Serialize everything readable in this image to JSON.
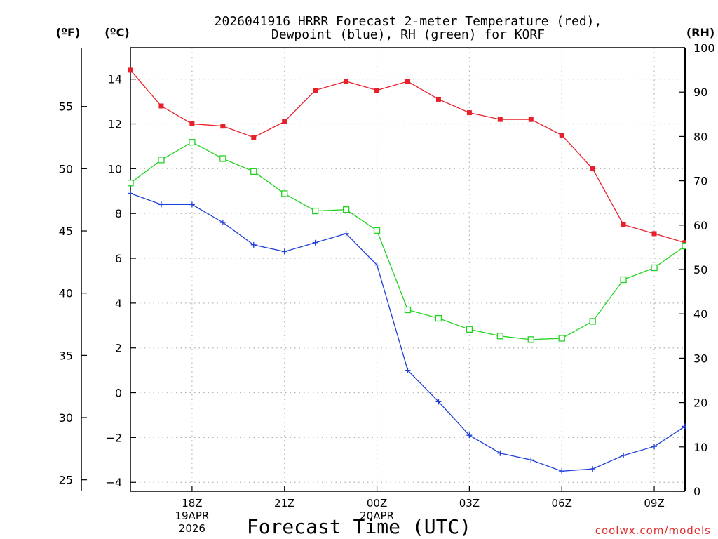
{
  "chart_data": {
    "type": "line",
    "title": "2026041916 HRRR Forecast 2-meter Temperature (red),",
    "title_line2": "Dewpoint (blue), RH (green) for KORF",
    "xlabel": "Forecast Time (UTC)",
    "watermark": "coolwx.com/models",
    "axis_labels": {
      "fahrenheit": "(ºF)",
      "celsius": "(ºC)",
      "rh": "(RH)"
    },
    "xlim": [
      16,
      34
    ],
    "ylim_celsius": [
      -4.4,
      15.4
    ],
    "ylim_rh": [
      0,
      100
    ],
    "grid": true,
    "x_ticks": [
      {
        "x": 18,
        "label": "18Z",
        "sub1": "19APR",
        "sub2": "2026"
      },
      {
        "x": 21,
        "label": "21Z",
        "sub1": "",
        "sub2": ""
      },
      {
        "x": 24,
        "label": "00Z",
        "sub1": "20APR",
        "sub2": ""
      },
      {
        "x": 27,
        "label": "03Z",
        "sub1": "",
        "sub2": ""
      },
      {
        "x": 30,
        "label": "06Z",
        "sub1": "",
        "sub2": ""
      },
      {
        "x": 33,
        "label": "09Z",
        "sub1": "",
        "sub2": ""
      }
    ],
    "celsius_ticks": [
      {
        "v": 14,
        "label": "14"
      },
      {
        "v": 12,
        "label": "12"
      },
      {
        "v": 10,
        "label": "10"
      },
      {
        "v": 8,
        "label": "8"
      },
      {
        "v": 6,
        "label": "6"
      },
      {
        "v": 4,
        "label": "4"
      },
      {
        "v": 2,
        "label": "2"
      },
      {
        "v": 0,
        "label": "0"
      },
      {
        "v": -2,
        "label": "−2"
      },
      {
        "v": -4,
        "label": "−4"
      }
    ],
    "fahrenheit_ticks": [
      {
        "v": 55,
        "label": "55"
      },
      {
        "v": 50,
        "label": "50"
      },
      {
        "v": 45,
        "label": "45"
      },
      {
        "v": 40,
        "label": "40"
      },
      {
        "v": 35,
        "label": "35"
      },
      {
        "v": 30,
        "label": "30"
      },
      {
        "v": 25,
        "label": "25"
      }
    ],
    "rh_ticks": [
      {
        "v": 100,
        "label": "100"
      },
      {
        "v": 90,
        "label": "90"
      },
      {
        "v": 80,
        "label": "80"
      },
      {
        "v": 70,
        "label": "70"
      },
      {
        "v": 60,
        "label": "60"
      },
      {
        "v": 50,
        "label": "50"
      },
      {
        "v": 40,
        "label": "40"
      },
      {
        "v": 30,
        "label": "30"
      },
      {
        "v": 20,
        "label": "20"
      },
      {
        "v": 10,
        "label": "10"
      },
      {
        "v": 0,
        "label": "0"
      }
    ],
    "x": [
      16,
      17,
      18,
      19,
      20,
      21,
      22,
      23,
      24,
      25,
      26,
      27,
      28,
      29,
      30,
      31,
      32,
      33,
      34
    ],
    "series": [
      {
        "name": "Temperature",
        "axis": "celsius",
        "color": "#e8202a",
        "marker": "filled-square",
        "values": [
          14.4,
          12.8,
          12.0,
          11.9,
          11.4,
          12.1,
          13.5,
          13.9,
          13.5,
          13.9,
          13.1,
          12.5,
          12.2,
          12.2,
          11.5,
          10.0,
          7.5,
          7.1,
          6.7
        ]
      },
      {
        "name": "Dewpoint",
        "axis": "celsius",
        "color": "#1f3fd8",
        "marker": "plus",
        "values": [
          8.9,
          8.4,
          8.4,
          7.6,
          6.6,
          6.3,
          6.7,
          7.1,
          5.7,
          1.0,
          -0.4,
          -1.9,
          -2.7,
          -3.0,
          -3.5,
          -3.4,
          -2.8,
          -2.4,
          -1.5
        ]
      },
      {
        "name": "RH",
        "axis": "rh",
        "color": "#22d322",
        "marker": "open-square",
        "values": [
          69.5,
          74.7,
          78.7,
          75.0,
          72.1,
          67.1,
          63.2,
          63.5,
          58.8,
          40.9,
          39.0,
          36.5,
          35.0,
          34.2,
          34.5,
          38.3,
          47.7,
          50.4,
          55.3
        ]
      }
    ]
  }
}
